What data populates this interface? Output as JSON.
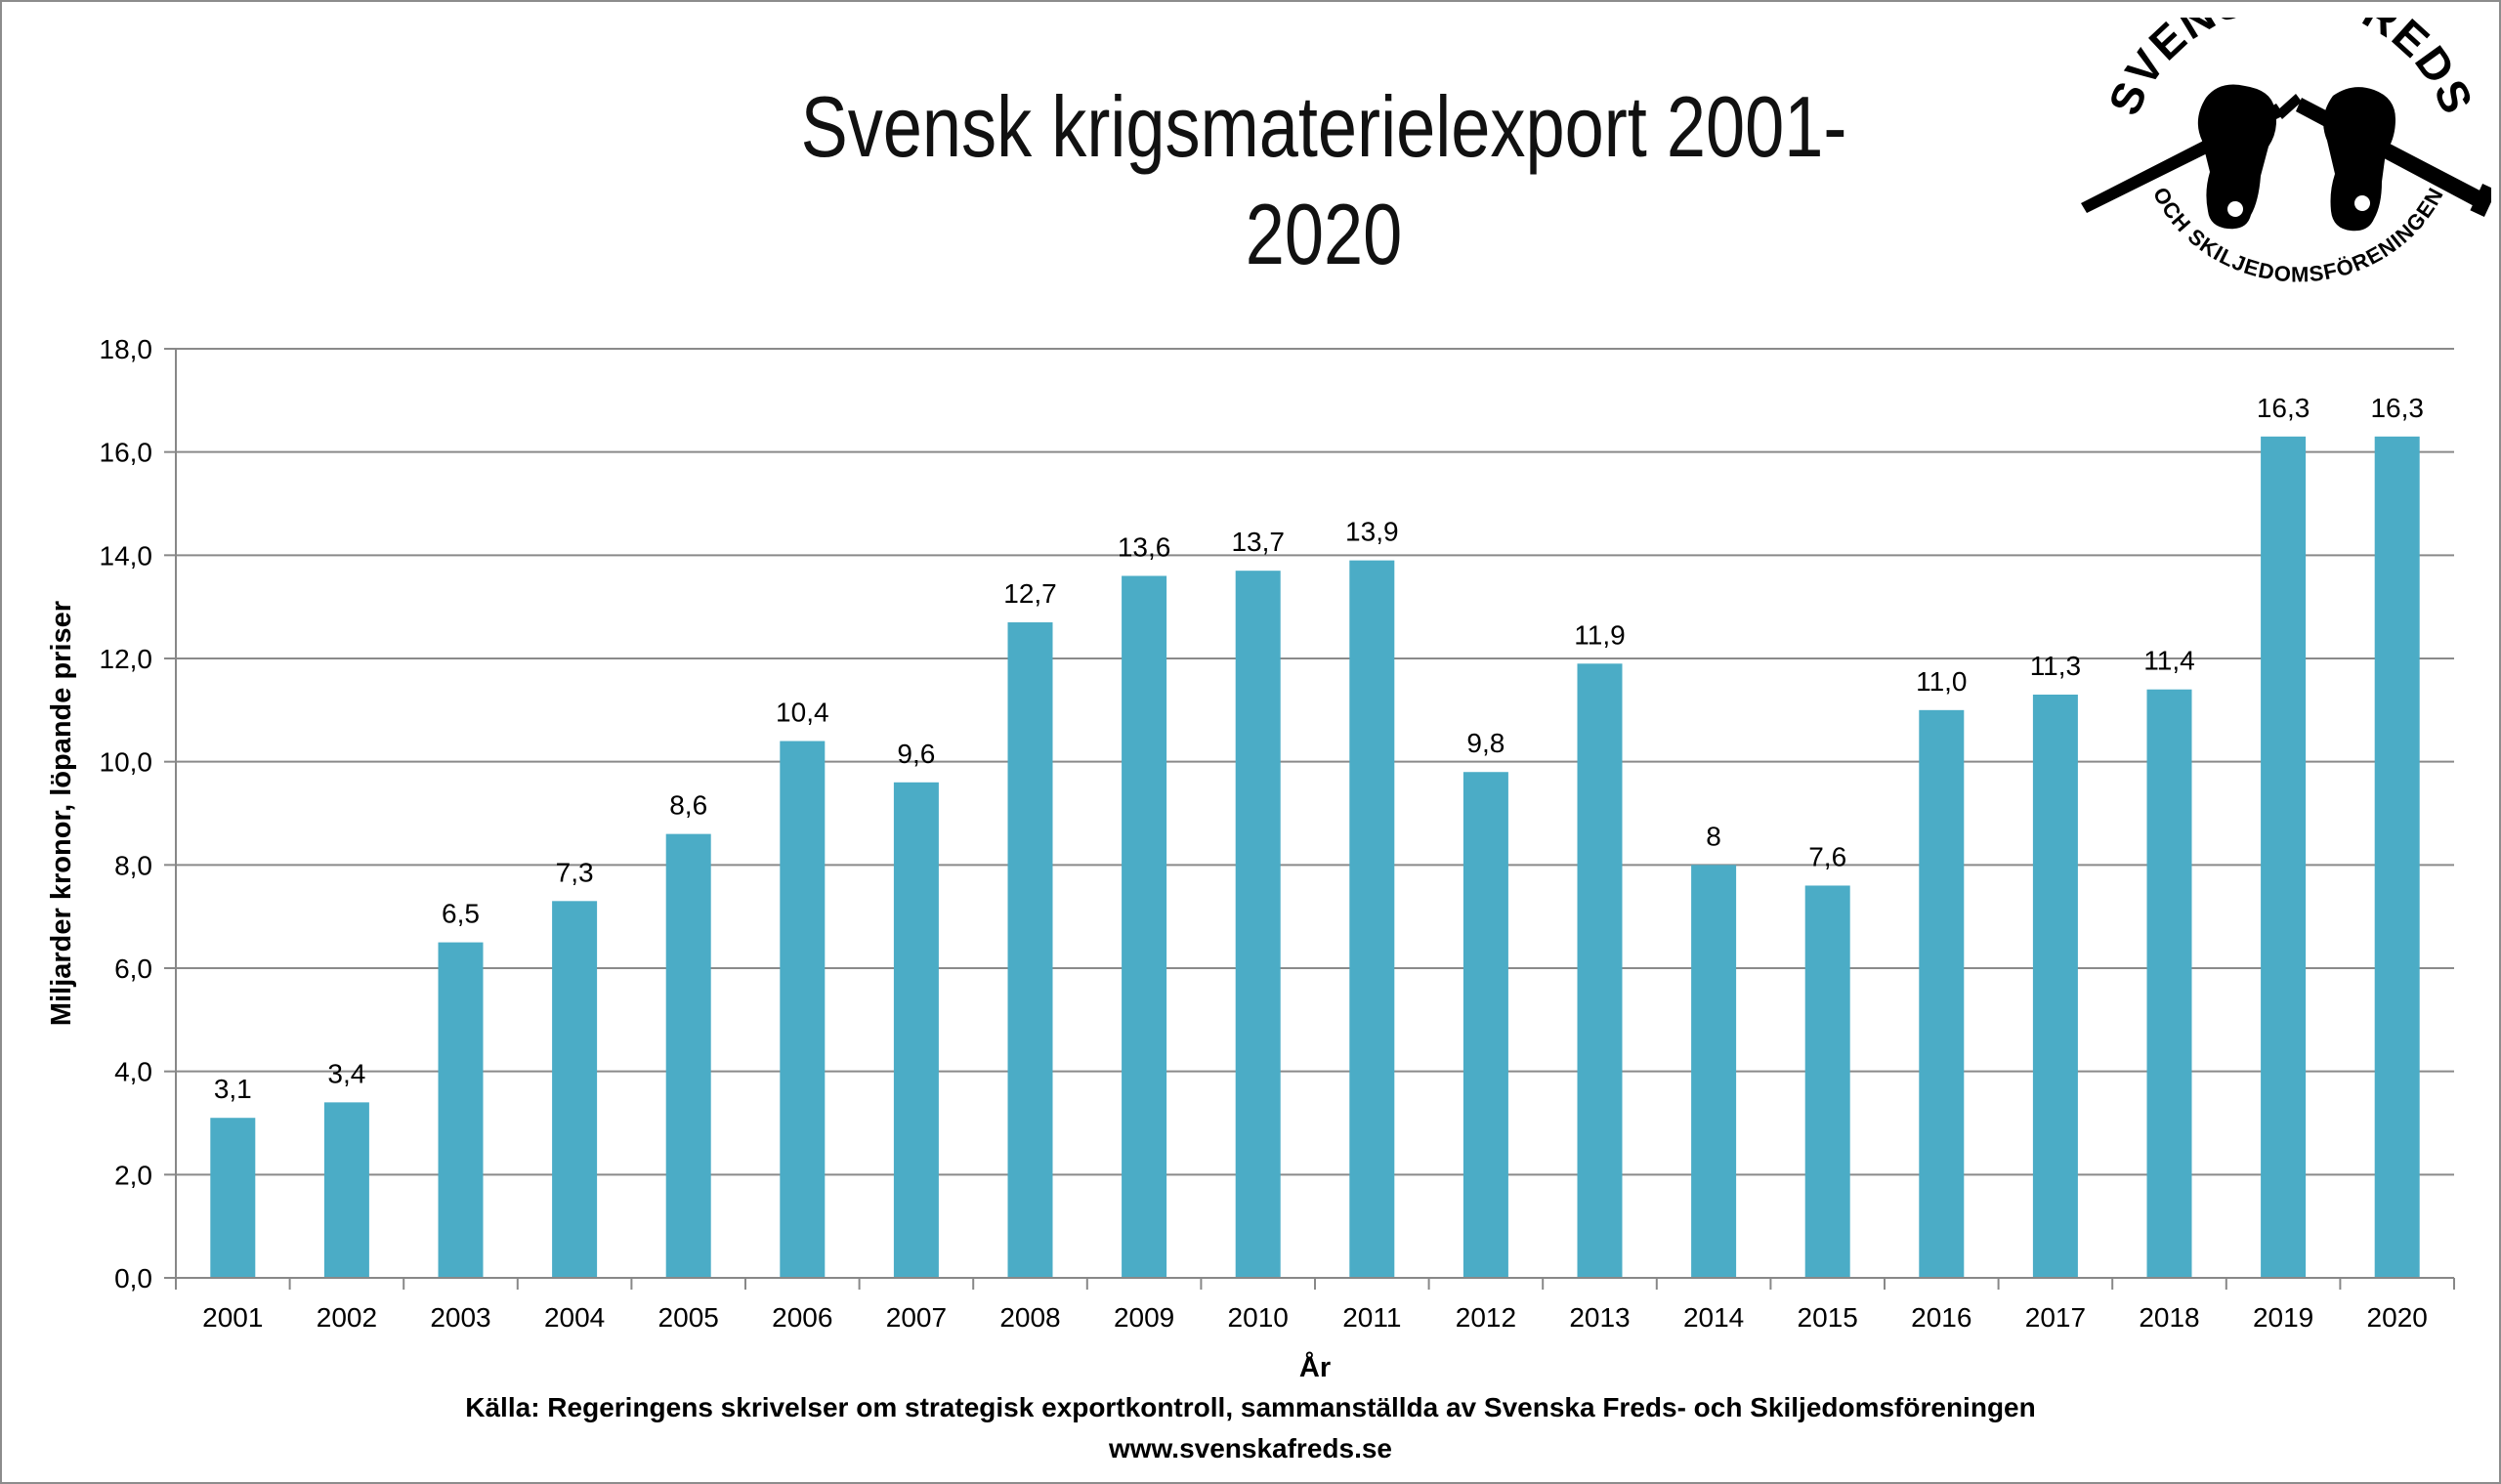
{
  "chart_data": {
    "type": "bar",
    "title": "Svensk krigsmaterielexport 2001-2020",
    "xlabel": "År",
    "ylabel": "Miljarder kronor, löpande priser",
    "ylim": [
      0,
      18
    ],
    "yticks": [
      "0,0",
      "2,0",
      "4,0",
      "6,0",
      "8,0",
      "10,0",
      "12,0",
      "14,0",
      "16,0",
      "18,0"
    ],
    "grid": true,
    "legend": "none",
    "bar_color": "#4BACC6",
    "categories": [
      "2001",
      "2002",
      "2003",
      "2004",
      "2005",
      "2006",
      "2007",
      "2008",
      "2009",
      "2010",
      "2011",
      "2012",
      "2013",
      "2014",
      "2015",
      "2016",
      "2017",
      "2018",
      "2019",
      "2020"
    ],
    "values": [
      3.1,
      3.4,
      6.5,
      7.3,
      8.6,
      10.4,
      9.6,
      12.7,
      13.6,
      13.7,
      13.9,
      9.8,
      11.9,
      8.0,
      7.6,
      11.0,
      11.3,
      11.4,
      16.3,
      16.3
    ],
    "data_labels": [
      "3,1",
      "3,4",
      "6,5",
      "7,3",
      "8,6",
      "10,4",
      "9,6",
      "12,7",
      "13,6",
      "13,7",
      "13,9",
      "9,8",
      "11,9",
      "8",
      "7,6",
      "11,0",
      "11,3",
      "11,4",
      "16,3",
      "16,3"
    ]
  },
  "source": "Källa: Regeringens skrivelser om strategisk exportkontroll, sammanställda av Svenska Freds- och Skiljedomsföreningen",
  "website": "www.svenskafreds.se",
  "logo": {
    "text_top": "SVENSKA FREDS",
    "text_bottom": "OCH SKILJEDOMSFÖRENINGEN",
    "icon": "hands-breaking-rifle-icon"
  }
}
